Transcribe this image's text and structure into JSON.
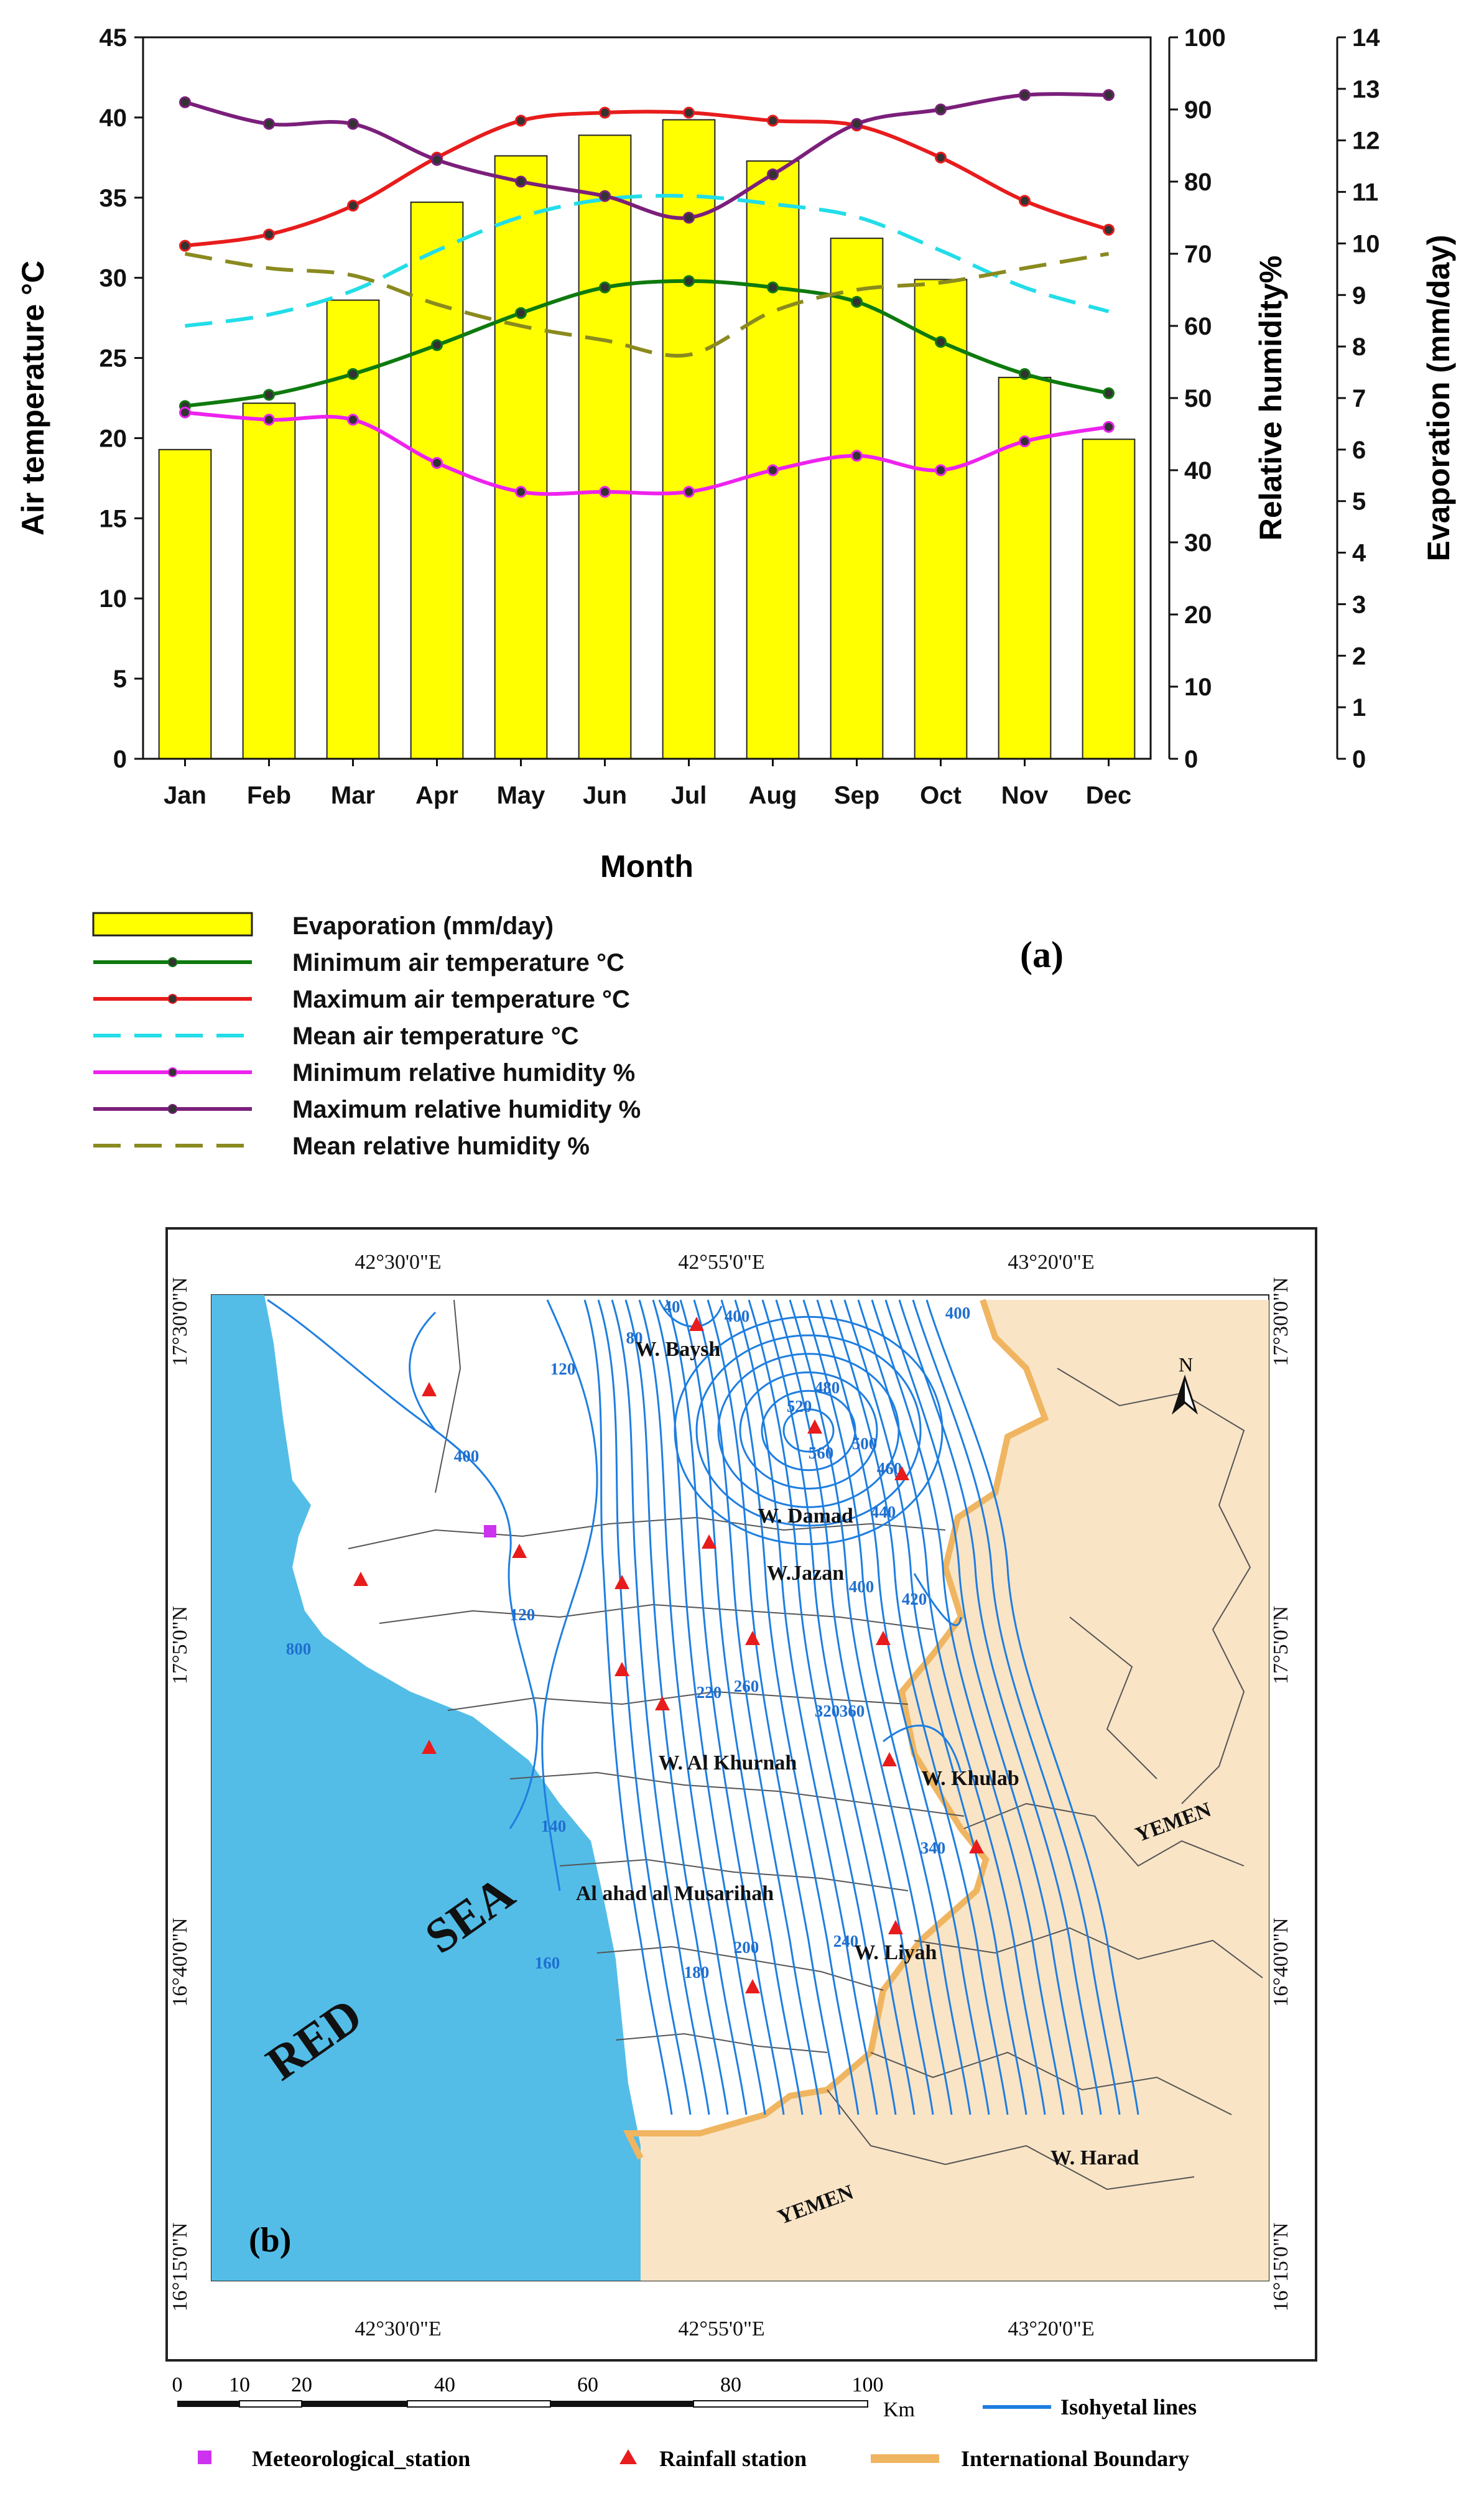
{
  "panel_a_label": "(a)",
  "panel_b_label": "(b)",
  "chart_data": {
    "type": "bar",
    "xlabel": "Month",
    "ylabel": "Air temperature °C",
    "y2label": "Relative humidity%",
    "y3label": "Evaporation (mm/day)",
    "categories": [
      "Jan",
      "Feb",
      "Mar",
      "Apr",
      "May",
      "Jun",
      "Jul",
      "Aug",
      "Sep",
      "Oct",
      "Nov",
      "Dec"
    ],
    "ylim": [
      0,
      45
    ],
    "y2lim": [
      0,
      100
    ],
    "y3lim": [
      0,
      14
    ],
    "yticks": [
      "0",
      "5",
      "10",
      "15",
      "20",
      "25",
      "30",
      "35",
      "40",
      "45"
    ],
    "y2ticks": [
      "0",
      "10",
      "20",
      "30",
      "40",
      "50",
      "60",
      "70",
      "80",
      "90",
      "100"
    ],
    "y3ticks": [
      "0",
      "1",
      "2",
      "3",
      "4",
      "5",
      "6",
      "7",
      "8",
      "9",
      "10",
      "11",
      "12",
      "13",
      "14"
    ],
    "series": [
      {
        "name": "Evaporation (mm/day)",
        "axis": "y3",
        "style": "bar",
        "color": "#ffff00",
        "values": [
          6.0,
          6.9,
          8.9,
          10.8,
          11.7,
          12.1,
          12.4,
          11.6,
          10.1,
          9.3,
          7.4,
          6.2
        ]
      },
      {
        "name": "Minimum air temperature °C",
        "axis": "y",
        "style": "line-marker",
        "color": "#0e7a0e",
        "values": [
          22.0,
          22.7,
          24.0,
          25.8,
          27.8,
          29.4,
          29.8,
          29.4,
          28.5,
          26.0,
          24.0,
          22.8
        ]
      },
      {
        "name": "Maximum air temperature °C",
        "axis": "y",
        "style": "line-marker",
        "color": "#e81c1c",
        "values": [
          32.0,
          32.7,
          34.5,
          37.5,
          39.8,
          40.3,
          40.3,
          39.8,
          39.5,
          37.5,
          34.8,
          33.0
        ]
      },
      {
        "name": "Mean air temperature °C",
        "axis": "y",
        "style": "dashed",
        "color": "#22dde8",
        "values": [
          27.0,
          27.7,
          29.2,
          31.7,
          33.8,
          34.9,
          35.1,
          34.6,
          33.8,
          31.7,
          29.4,
          27.9
        ]
      },
      {
        "name": "Minimum relative humidity %",
        "axis": "y2",
        "style": "line-marker",
        "color": "#ee22ee",
        "values": [
          48,
          47,
          47,
          41,
          37,
          37,
          37,
          40,
          42,
          40,
          44,
          46
        ]
      },
      {
        "name": "Maximum relative humidity %",
        "axis": "y2",
        "style": "line-marker",
        "color": "#7b1f7b",
        "values": [
          91,
          88,
          88,
          83,
          80,
          78,
          75,
          81,
          88,
          90,
          92,
          92
        ]
      },
      {
        "name": "Mean relative humidity %",
        "axis": "y2",
        "style": "dashed",
        "color": "#8a8a1f",
        "values": [
          70,
          68,
          67,
          63,
          60,
          58,
          56,
          62,
          65,
          66,
          68,
          70
        ]
      }
    ]
  },
  "map": {
    "lon_labels": [
      "42°30'0\"E",
      "42°55'0\"E",
      "43°20'0\"E"
    ],
    "lat_labels": [
      "17°30'0\"N",
      "17°5'0\"N",
      "16°40'0\"N",
      "16°15'0\"N"
    ],
    "north_label": "N",
    "places": [
      "W. Baysh",
      "W. Damad",
      "W.Jazan",
      "W. Al Khurnah",
      "W. Khulab",
      "Al ahad al Musarihah",
      "W. Liyah",
      "W. Harad",
      "YEMEN",
      "YEMEN"
    ],
    "sea_words": [
      "RED",
      "SEA"
    ],
    "isohyets": [
      "40",
      "80",
      "120",
      "400",
      "400",
      "480",
      "520",
      "560",
      "500",
      "460",
      "400",
      "420",
      "440",
      "120",
      "220",
      "260",
      "320",
      "360",
      "340",
      "140",
      "160",
      "180",
      "200",
      "240",
      "800",
      "400"
    ],
    "scalebar": {
      "ticks": [
        "0",
        "10",
        "20",
        "40",
        "60",
        "80",
        "100"
      ],
      "unit": "Km"
    },
    "legend": {
      "isohyetal": "Isohyetal lines",
      "met": "Meteorological_station",
      "rain": "Rainfall station",
      "boundary": "International Boundary"
    },
    "colors": {
      "sea": "#53bde8",
      "yemen": "#f9e4c6",
      "isohyet": "#1e7ee0",
      "station": "#e81c1c",
      "met": "#cc33ee",
      "boundary": "#f0b560"
    }
  }
}
